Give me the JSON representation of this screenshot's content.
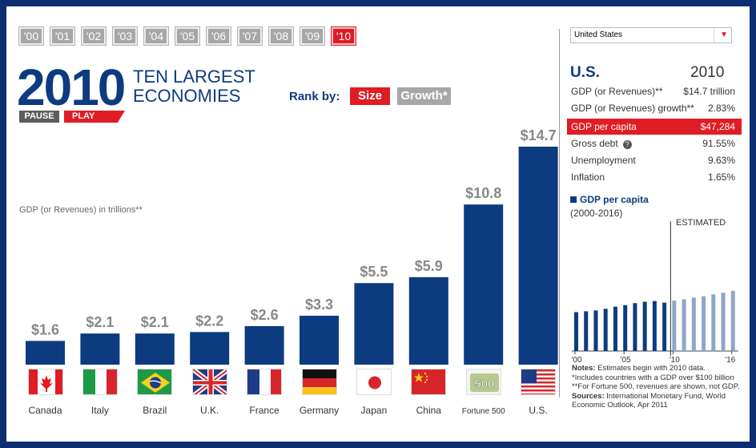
{
  "years": [
    "'00",
    "'01",
    "'02",
    "'03",
    "'04",
    "'05",
    "'06",
    "'07",
    "'08",
    "'09",
    "'10"
  ],
  "active_year": "'10",
  "big_year": "2010",
  "headline": [
    "TEN LARGEST",
    "ECONOMIES"
  ],
  "pause_label": "PAUSE",
  "play_label": "PLAY",
  "rank_label": "Rank by:",
  "rank_size": "Size",
  "rank_growth": "Growth*",
  "gdp_label": "GDP (or Revenues) in trillions**",
  "colors": {
    "bar": "#0d3b80",
    "accent": "#e01c24",
    "estimated": "#8ea6c8"
  },
  "chart_data": {
    "type": "bar",
    "categories": [
      "Canada",
      "Italy",
      "Brazil",
      "U.K.",
      "France",
      "Germany",
      "Japan",
      "China",
      "Fortune 500",
      "U.S."
    ],
    "values": [
      1.6,
      2.1,
      2.1,
      2.2,
      2.6,
      3.3,
      5.5,
      5.9,
      10.8,
      14.7
    ],
    "value_labels": [
      "$1.6",
      "$2.1",
      "$2.1",
      "$2.2",
      "$2.6",
      "$3.3",
      "$5.5",
      "$5.9",
      "$10.8",
      "$14.7"
    ],
    "flags": [
      "canada",
      "italy",
      "brazil",
      "uk",
      "france",
      "germany",
      "japan",
      "china",
      "fortune500",
      "us"
    ],
    "ylim": [
      0,
      14.7
    ]
  },
  "panel": {
    "select_value": "United States",
    "country_code": "U.S.",
    "year": "2010",
    "stats": [
      {
        "k": "GDP (or Revenues)**",
        "v": "$14.7 trillion"
      },
      {
        "k": "GDP (or Revenues) growth**",
        "v": "2.83%"
      },
      {
        "k": "GDP per capita",
        "v": "$47,284"
      },
      {
        "k": "Gross debt",
        "v": "91.55%"
      },
      {
        "k": "Unemployment",
        "v": "9.63%"
      },
      {
        "k": "Inflation",
        "v": "1.65%"
      }
    ],
    "mini_title": "GDP per capita",
    "mini_range": "(2000-2016)",
    "estimated": "ESTIMATED",
    "mini_chart": {
      "type": "bar",
      "x": [
        2000,
        2001,
        2002,
        2003,
        2004,
        2005,
        2006,
        2007,
        2008,
        2009,
        2010,
        2011,
        2012,
        2013,
        2014,
        2015,
        2016
      ],
      "values": [
        36400,
        37200,
        38000,
        39500,
        41500,
        42900,
        44800,
        46100,
        46800,
        45300,
        47284,
        48400,
        50000,
        51300,
        53000,
        54600,
        56300
      ],
      "estimated_from": 2010,
      "tick_labels": [
        "'00",
        "'05",
        "'10",
        "'16"
      ],
      "tick_years": [
        2000,
        2005,
        2010,
        2016
      ]
    },
    "notes": {
      "notes_label": "Notes:",
      "notes_text": "Estimates begin with 2010 data.",
      "note2": "*Includes countries with a GDP over $100 billion",
      "note3": "**For Fortune 500, revenues are shown, not GDP.",
      "sources_label": "Sources:",
      "sources_text": "International Monetary Fund, World Economic Outlook, Apr 2011"
    }
  }
}
